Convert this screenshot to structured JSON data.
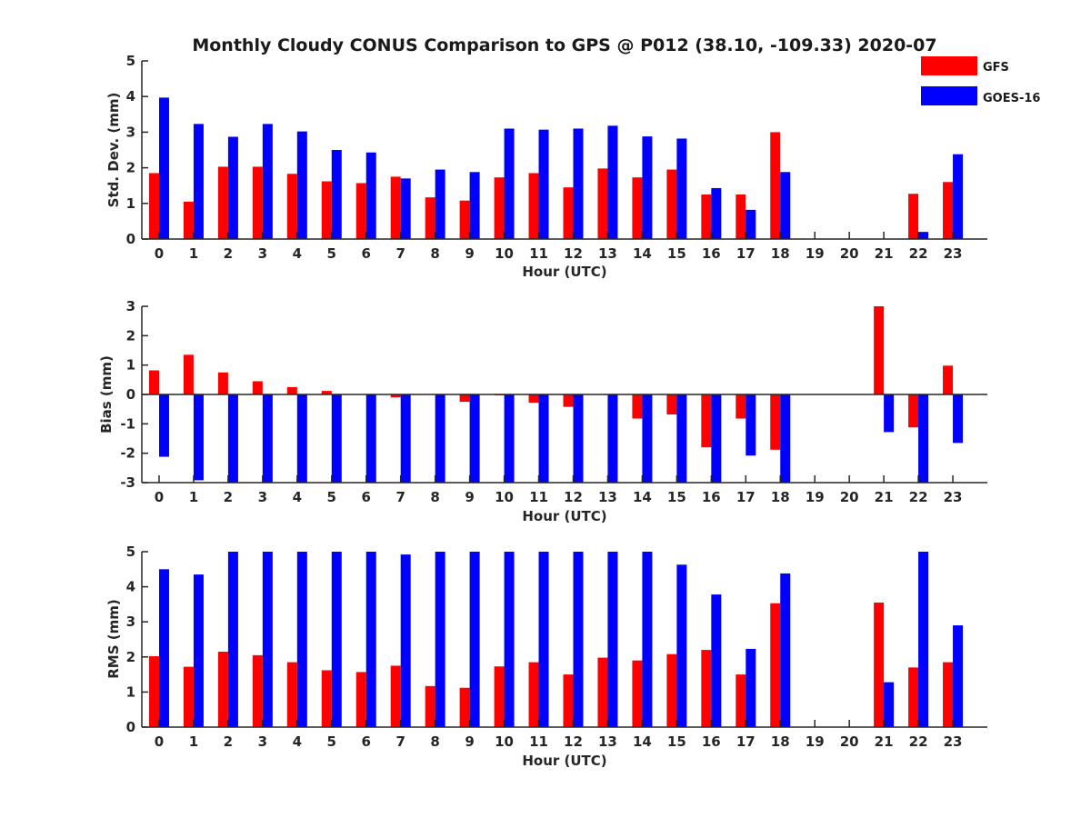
{
  "chart_data": [
    {
      "type": "bar",
      "title": "Monthly Cloudy CONUS Comparison to GPS @ P012 (38.10, -109.33) 2020-07",
      "xlabel": "Hour (UTC)",
      "ylabel": "Std. Dev. (mm)",
      "ylim": [
        0,
        5
      ],
      "yticks": [
        0,
        1,
        2,
        3,
        4,
        5
      ],
      "categories": [
        "0",
        "1",
        "2",
        "3",
        "4",
        "5",
        "6",
        "7",
        "8",
        "9",
        "10",
        "11",
        "12",
        "13",
        "14",
        "15",
        "16",
        "17",
        "18",
        "19",
        "20",
        "21",
        "22",
        "23"
      ],
      "series": [
        {
          "name": "GFS",
          "color": "#ff0000",
          "values": [
            1.85,
            1.05,
            2.03,
            2.03,
            1.83,
            1.62,
            1.57,
            1.75,
            1.17,
            1.08,
            1.73,
            1.85,
            1.45,
            1.98,
            1.73,
            1.95,
            1.25,
            1.25,
            3.0,
            null,
            null,
            null,
            1.27,
            1.6
          ]
        },
        {
          "name": "GOES-16",
          "color": "#0000ff",
          "values": [
            3.97,
            3.23,
            2.87,
            3.23,
            3.02,
            2.5,
            2.43,
            1.7,
            1.95,
            1.88,
            3.1,
            3.07,
            3.1,
            3.18,
            2.88,
            2.82,
            1.43,
            0.82,
            1.88,
            null,
            null,
            null,
            0.2,
            2.38
          ]
        }
      ],
      "legend": {
        "placement": "top-right"
      },
      "grid": false
    },
    {
      "type": "bar",
      "title": "",
      "xlabel": "Hour (UTC)",
      "ylabel": "Bias (mm)",
      "ylim": [
        -3,
        3
      ],
      "yticks": [
        -3,
        -2,
        -1,
        0,
        1,
        2,
        3
      ],
      "categories": [
        "0",
        "1",
        "2",
        "3",
        "4",
        "5",
        "6",
        "7",
        "8",
        "9",
        "10",
        "11",
        "12",
        "13",
        "14",
        "15",
        "16",
        "17",
        "18",
        "19",
        "20",
        "21",
        "22",
        "23"
      ],
      "series": [
        {
          "name": "GFS",
          "color": "#ff0000",
          "values": [
            0.82,
            1.35,
            0.75,
            0.45,
            0.25,
            0.12,
            0.0,
            -0.1,
            0.0,
            -0.25,
            -0.03,
            -0.28,
            -0.42,
            0.0,
            -0.82,
            -0.68,
            -1.8,
            -0.82,
            -1.88,
            null,
            null,
            3.0,
            -1.12,
            0.98
          ]
        },
        {
          "name": "GOES-16",
          "color": "#0000ff",
          "values": [
            -2.12,
            -2.92,
            -3.0,
            -3.0,
            -3.0,
            -3.0,
            -3.0,
            -3.0,
            -3.0,
            -3.0,
            -3.0,
            -3.0,
            -3.0,
            -3.0,
            -3.0,
            -3.0,
            -3.0,
            -2.08,
            -3.0,
            null,
            null,
            -1.28,
            -3.0,
            -1.65
          ]
        }
      ],
      "grid": false
    },
    {
      "type": "bar",
      "title": "",
      "xlabel": "Hour (UTC)",
      "ylabel": "RMS (mm)",
      "ylim": [
        0,
        5
      ],
      "yticks": [
        0,
        1,
        2,
        3,
        4,
        5
      ],
      "categories": [
        "0",
        "1",
        "2",
        "3",
        "4",
        "5",
        "6",
        "7",
        "8",
        "9",
        "10",
        "11",
        "12",
        "13",
        "14",
        "15",
        "16",
        "17",
        "18",
        "19",
        "20",
        "21",
        "22",
        "23"
      ],
      "series": [
        {
          "name": "GFS",
          "color": "#ff0000",
          "values": [
            2.02,
            1.72,
            2.15,
            2.05,
            1.85,
            1.62,
            1.57,
            1.75,
            1.17,
            1.12,
            1.73,
            1.85,
            1.5,
            1.98,
            1.9,
            2.08,
            2.2,
            1.5,
            3.53,
            null,
            null,
            3.55,
            1.7,
            1.85
          ]
        },
        {
          "name": "GOES-16",
          "color": "#0000ff",
          "values": [
            4.5,
            4.35,
            5.0,
            5.0,
            5.0,
            5.0,
            5.0,
            4.92,
            5.0,
            5.0,
            5.0,
            5.0,
            5.0,
            5.0,
            5.0,
            4.63,
            3.78,
            2.23,
            4.38,
            null,
            null,
            1.28,
            5.0,
            2.9
          ]
        }
      ],
      "grid": false
    }
  ]
}
